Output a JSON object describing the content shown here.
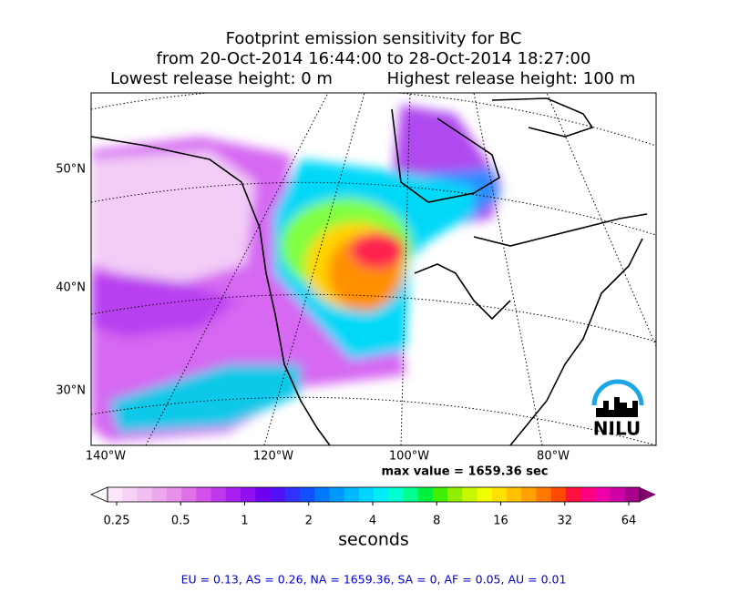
{
  "title": {
    "line1": "Footprint emission sensitivity for BC",
    "line2": "from 20-Oct-2014 16:44:00 to 28-Oct-2014 18:27:00",
    "lowest": "Lowest release height: 0 m",
    "highest": "Highest release height: 100 m"
  },
  "map": {
    "lat_labels": [
      "50°N",
      "40°N",
      "30°N"
    ],
    "lon_labels": [
      "140°W",
      "120°W",
      "100°W",
      "80°W"
    ],
    "logo": "NILU"
  },
  "max_value": "max value = 1659.36 sec",
  "colorbar": {
    "ticks": [
      0.25,
      0.5,
      1,
      2,
      4,
      8,
      16,
      32,
      64
    ],
    "label": "seconds",
    "colors": [
      "#fbe6fb",
      "#f7d2f7",
      "#f2bef2",
      "#eda8ee",
      "#e890ea",
      "#e070e8",
      "#d450ea",
      "#c038ee",
      "#a820f2",
      "#9010f2",
      "#7000f0",
      "#5010f8",
      "#3030ff",
      "#1050ff",
      "#0078ff",
      "#0098ff",
      "#00b8ff",
      "#00d4ff",
      "#00ecf8",
      "#00ffd0",
      "#00ff90",
      "#00f040",
      "#40f000",
      "#90f000",
      "#c8f800",
      "#f0ff00",
      "#ffe000",
      "#ffc000",
      "#ffa000",
      "#ff7800",
      "#ff4800",
      "#ff1040",
      "#ff0080",
      "#f000a8",
      "#d000a8",
      "#a8008c"
    ],
    "under_color": "#ffffff",
    "over_color": "#800070"
  },
  "footer": "EU = 0.13,  AS = 0.26,  NA = 1659.36,  SA = 0,  AF = 0.05,  AU = 0.01"
}
